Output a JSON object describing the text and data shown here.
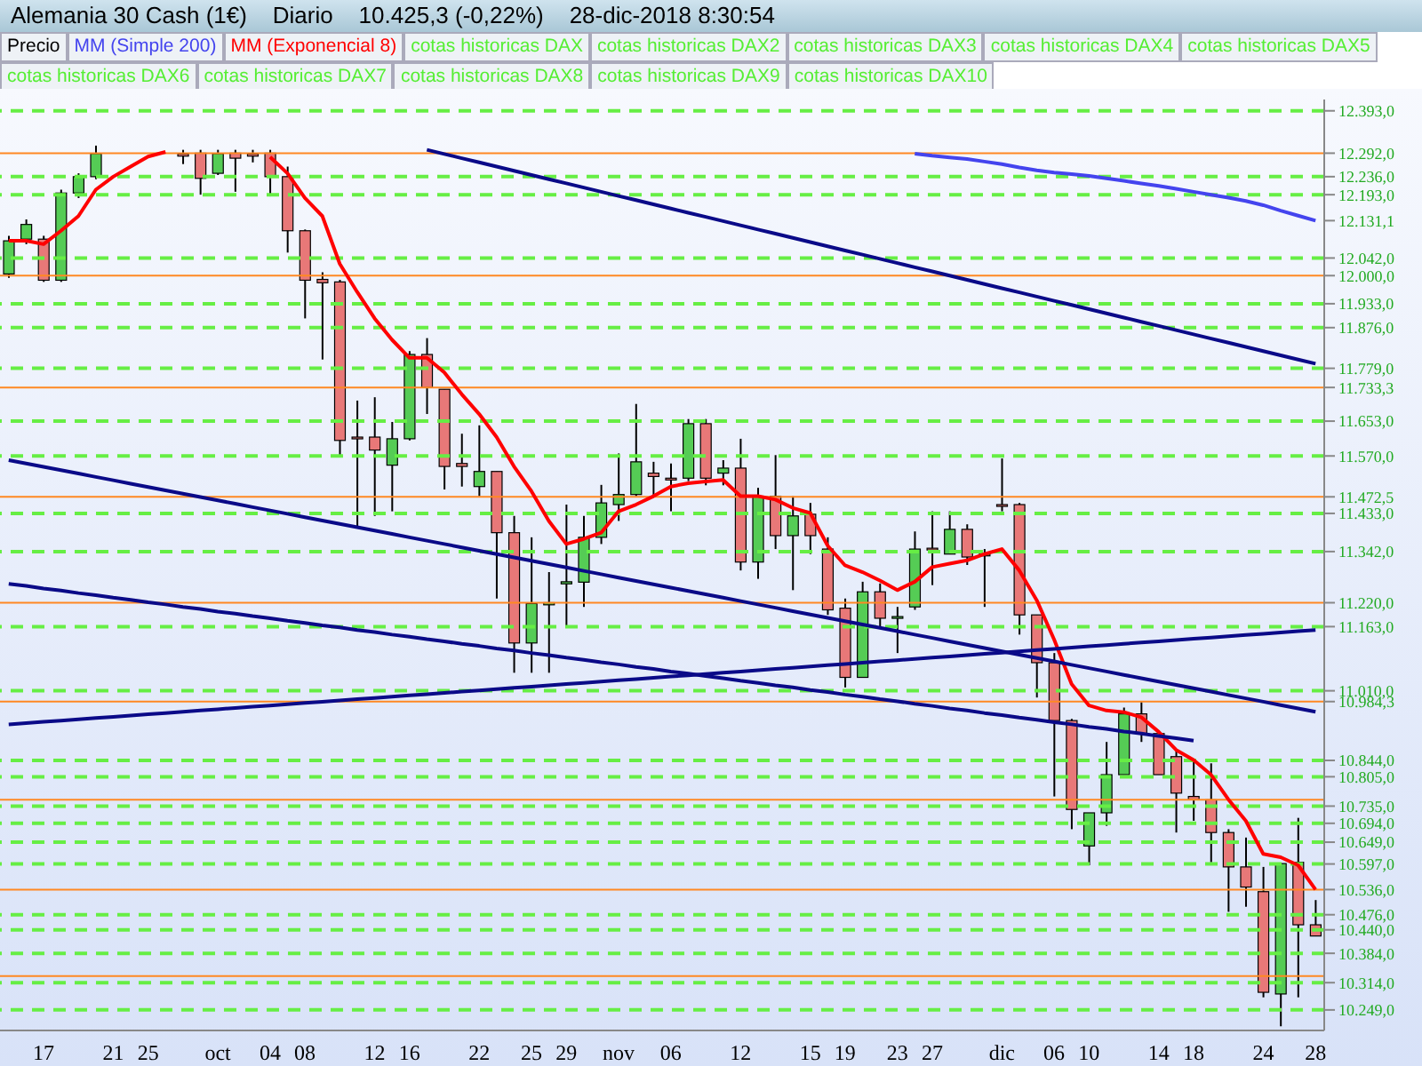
{
  "chart_data": {
    "type": "candlestick",
    "title": "Alemania 30 Cash (1€)    Diario    10.425,3 (-0,22%)    28-dic-2018 8:30:54",
    "legend": "top",
    "categories": [
      null,
      null,
      "17",
      null,
      null,
      null,
      "21",
      null,
      "25",
      null,
      null,
      null,
      "oct",
      null,
      null,
      "04",
      null,
      "08",
      null,
      null,
      null,
      "12",
      null,
      "16",
      null,
      null,
      null,
      "22",
      null,
      null,
      "25",
      null,
      "29",
      null,
      null,
      "nov",
      null,
      null,
      "06",
      null,
      null,
      null,
      "12",
      null,
      null,
      null,
      "15",
      null,
      "19",
      null,
      null,
      "23",
      null,
      "27",
      null,
      null,
      null,
      "dic",
      null,
      null,
      "06",
      null,
      "10",
      null,
      null,
      null,
      "14",
      null,
      "18",
      null,
      null,
      null,
      "24",
      null,
      null,
      "28"
    ],
    "series": [
      {
        "type": "candlestick",
        "name": "Precio",
        "ohlc": [
          [
            12004,
            12095,
            11995,
            12083
          ],
          [
            12087,
            12134,
            12075,
            12122
          ],
          [
            12087,
            12095,
            11985,
            11989
          ],
          [
            11989,
            12205,
            11985,
            12197
          ],
          [
            12197,
            12244,
            12185,
            12236
          ],
          [
            12236,
            12310,
            12230,
            12291
          ],
          null,
          null,
          null,
          null,
          [
            12290,
            12300,
            12266,
            12285
          ],
          [
            12292,
            12300,
            12193,
            12232
          ],
          [
            12244,
            12300,
            12240,
            12291
          ],
          [
            12292,
            12300,
            12200,
            12280
          ],
          [
            12290,
            12300,
            12270,
            12285
          ],
          [
            12292,
            12300,
            12189,
            12236
          ],
          [
            12236,
            12260,
            12055,
            12107
          ],
          [
            12107,
            12110,
            11898,
            11989
          ],
          [
            11991,
            12008,
            11800,
            11983
          ],
          [
            11985,
            11990,
            11572,
            11607
          ],
          [
            11615,
            11702,
            11399,
            11612
          ],
          [
            11615,
            11710,
            11427,
            11584
          ],
          [
            11548,
            11651,
            11438,
            11611
          ],
          [
            11611,
            11820,
            11607,
            11812
          ],
          [
            11812,
            11851,
            11670,
            11733
          ],
          [
            11729,
            11729,
            11490,
            11545
          ],
          [
            11552,
            11623,
            11497,
            11545
          ],
          [
            11497,
            11643,
            11474,
            11533
          ],
          [
            11533,
            11533,
            11230,
            11387
          ],
          [
            11387,
            11427,
            11053,
            11124
          ],
          [
            11124,
            11376,
            11053,
            11218
          ],
          [
            11215,
            11293,
            11053,
            11220
          ],
          [
            11265,
            11454,
            11163,
            11270
          ],
          [
            11269,
            11427,
            11210,
            11376
          ],
          [
            11376,
            11501,
            11360,
            11458
          ],
          [
            11454,
            11576,
            11415,
            11478
          ],
          [
            11478,
            11694,
            11474,
            11556
          ],
          [
            11529,
            11556,
            11474,
            11521
          ],
          [
            11517,
            11552,
            11438,
            11515
          ],
          [
            11517,
            11658,
            11510,
            11647
          ],
          [
            11647,
            11658,
            11500,
            11517
          ],
          [
            11529,
            11560,
            11500,
            11541
          ],
          [
            11541,
            11611,
            11297,
            11317
          ],
          [
            11317,
            11494,
            11277,
            11474
          ],
          [
            11474,
            11572,
            11348,
            11380
          ],
          [
            11380,
            11474,
            11250,
            11427
          ],
          [
            11431,
            11458,
            11336,
            11380
          ],
          [
            11348,
            11376,
            11191,
            11203
          ],
          [
            11207,
            11230,
            11018,
            11042
          ],
          [
            11042,
            11270,
            11042,
            11246
          ],
          [
            11246,
            11266,
            11160,
            11183
          ],
          [
            11183,
            11210,
            11100,
            11187
          ],
          [
            11210,
            11390,
            11203,
            11348
          ],
          [
            11350,
            11438,
            11262,
            11348
          ],
          [
            11336,
            11438,
            11336,
            11395
          ],
          [
            11395,
            11407,
            11310,
            11329
          ],
          [
            11333,
            11348,
            11210,
            11336
          ],
          [
            11454,
            11564,
            11438,
            11452
          ],
          [
            11454,
            11458,
            11144,
            11191
          ],
          [
            11191,
            11191,
            10994,
            11077
          ],
          [
            11077,
            11100,
            10758,
            10939
          ],
          [
            10939,
            10943,
            10680,
            10727
          ],
          [
            10640,
            10719,
            10594,
            10719
          ],
          [
            10719,
            10888,
            10688,
            10810
          ],
          [
            10810,
            10970,
            10810,
            10955
          ],
          [
            10955,
            10983,
            10888,
            10908
          ],
          [
            10908,
            10912,
            10810,
            10810
          ],
          [
            10853,
            10869,
            10672,
            10766
          ],
          [
            10758,
            10845,
            10700,
            10750
          ],
          [
            10750,
            10837,
            10601,
            10672
          ],
          [
            10672,
            10680,
            10483,
            10590
          ],
          [
            10590,
            10660,
            10495,
            10542
          ],
          [
            10531,
            10590,
            10279,
            10291
          ],
          [
            10287,
            10598,
            10210,
            10598
          ],
          [
            10601,
            10707,
            10279,
            10452
          ],
          [
            10452,
            10511,
            10425.3,
            10425.3
          ]
        ],
        "colors": [
          "#55cc55",
          "#55cc55",
          "#e87878",
          "#55cc55",
          "#55cc55",
          "#55cc55",
          null,
          null,
          null,
          null,
          "#e87878",
          "#e87878",
          "#55cc55",
          "#e87878",
          "#e87878",
          "#e87878",
          "#e87878",
          "#e87878",
          "#e87878",
          "#e87878",
          "#e87878",
          "#e87878",
          "#55cc55",
          "#55cc55",
          "#e87878",
          "#e87878",
          "#e87878",
          "#55cc55",
          "#e87878",
          "#e87878",
          "#55cc55",
          "#55cc55",
          "#55cc55",
          "#55cc55",
          "#55cc55",
          "#55cc55",
          "#55cc55",
          "#e87878",
          "#e87878",
          "#55cc55",
          "#e87878",
          "#55cc55",
          "#e87878",
          "#55cc55",
          "#e87878",
          "#55cc55",
          "#e87878",
          "#e87878",
          "#e87878",
          "#55cc55",
          "#e87878",
          "#55cc55",
          "#55cc55",
          "#e87878",
          "#55cc55",
          "#e87878",
          "#55cc55",
          "#e87878",
          "#e87878",
          "#e87878",
          "#e87878",
          "#e87878",
          "#55cc55",
          "#55cc55",
          "#55cc55",
          "#e87878",
          "#e87878",
          "#e87878",
          "#e87878",
          "#e87878",
          "#e87878",
          "#e87878",
          "#e87878",
          "#55cc55",
          "#e87878",
          "#e87878"
        ]
      },
      {
        "type": "line",
        "name": "MM (Simple 200)",
        "color": "#4444ee",
        "values": [
          null,
          null,
          null,
          null,
          null,
          null,
          null,
          null,
          null,
          null,
          null,
          null,
          null,
          null,
          null,
          null,
          null,
          null,
          null,
          null,
          null,
          null,
          null,
          null,
          null,
          null,
          null,
          null,
          null,
          null,
          null,
          null,
          null,
          null,
          null,
          null,
          null,
          null,
          null,
          null,
          null,
          null,
          null,
          null,
          null,
          null,
          null,
          null,
          null,
          null,
          null,
          null,
          12291,
          12286,
          12282,
          12278,
          12272,
          12266,
          12258,
          12251,
          12246,
          12242,
          12238,
          12232,
          12226,
          12220,
          12214,
          12207,
          12200,
          12193,
          12186,
          12178,
          12168,
          12155,
          12143,
          12131.1
        ]
      },
      {
        "type": "line",
        "name": "MM (Exponencial 8)",
        "color": "#ff0000",
        "values": [
          12083,
          12083,
          12075,
          12107,
          12142,
          12205,
          12236,
          12260,
          12284,
          12295,
          null,
          null,
          null,
          null,
          null,
          12283,
          12244,
          12185,
          12142,
          12028,
          11961,
          11898,
          11847,
          11804,
          11804,
          11769,
          11717,
          11670,
          11615,
          11545,
          11486,
          11415,
          11360,
          11372,
          11387,
          11438,
          11454,
          11474,
          11497,
          11505,
          11509,
          11513,
          11474,
          11474,
          11466,
          11446,
          11434,
          11356,
          11309,
          11293,
          11273,
          11250,
          11270,
          11305,
          11313,
          11321,
          11336,
          11348,
          11297,
          11226,
          11132,
          11026,
          10975,
          10963,
          10959,
          10947,
          10912,
          10869,
          10845,
          10810,
          10751,
          10700,
          10621,
          10613,
          10594,
          10536
        ]
      },
      {
        "type": "line",
        "color": "#0a0a88",
        "values": [
          null,
          null,
          null,
          null,
          null,
          null,
          null,
          null,
          null,
          null,
          null,
          null,
          null,
          null,
          null,
          null,
          null,
          null,
          null,
          null,
          null,
          null,
          null,
          null,
          12300,
          12290,
          12280,
          12270,
          12260,
          12250,
          12240,
          12230,
          12220,
          12210,
          12200,
          12190,
          12180,
          12170,
          12160,
          12150,
          12140,
          12130,
          12120,
          12110,
          12100,
          12090,
          12080,
          12070,
          12060,
          12050,
          12040,
          12030,
          12020,
          12010,
          12000,
          11990,
          11980,
          11970,
          11960,
          11950,
          11940,
          11930,
          11920,
          11910,
          11900,
          11890,
          11880,
          11870,
          11860,
          11850,
          11840,
          11830,
          11820,
          11810,
          11800,
          11790
        ]
      },
      {
        "type": "line",
        "color": "#0a0a88",
        "values": [
          11560,
          11552,
          11544,
          11536,
          11528,
          11520,
          11512,
          11504,
          11496,
          11488,
          11480,
          11472,
          11464,
          11456,
          11448,
          11440,
          11432,
          11424,
          11416,
          11408,
          11400,
          11392,
          11384,
          11376,
          11368,
          11360,
          11352,
          11344,
          11336,
          11328,
          11320,
          11312,
          11304,
          11296,
          11288,
          11280,
          11272,
          11264,
          11256,
          11248,
          11240,
          11232,
          11224,
          11216,
          11208,
          11200,
          11192,
          11184,
          11176,
          11168,
          11160,
          11152,
          11144,
          11136,
          11128,
          11120,
          11112,
          11104,
          11096,
          11088,
          11080,
          11072,
          11064,
          11056,
          11048,
          11040,
          11032,
          11024,
          11016,
          11008,
          11000,
          10992,
          10984,
          10976,
          10968,
          10960
        ]
      },
      {
        "type": "line",
        "color": "#0a0a88",
        "values": [
          11265,
          11260,
          11254,
          11249,
          11243,
          11238,
          11232,
          11227,
          11221,
          11216,
          11210,
          11205,
          11199,
          11194,
          11188,
          11183,
          11177,
          11172,
          11166,
          11161,
          11155,
          11150,
          11144,
          11139,
          11133,
          11128,
          11122,
          11117,
          11111,
          11106,
          11100,
          11095,
          11089,
          11084,
          11078,
          11073,
          11067,
          11062,
          11056,
          11051,
          11045,
          11040,
          11034,
          11029,
          11023,
          11018,
          11012,
          11007,
          11001,
          10996,
          10990,
          10985,
          10979,
          10974,
          10968,
          10963,
          10957,
          10952,
          10946,
          10941,
          10935,
          10930,
          10924,
          10919,
          10913,
          10908,
          10902,
          10897,
          10891,
          null,
          null,
          null,
          null,
          null,
          null,
          null
        ]
      },
      {
        "type": "line",
        "color": "#0a0a88",
        "values": [
          10930,
          10933,
          10936,
          10939,
          10942,
          10945,
          10948,
          10951,
          10954,
          10957,
          10960,
          10963,
          10966,
          10969,
          10972,
          10975,
          10978,
          10981,
          10984,
          10987,
          10990,
          10993,
          10996,
          10999,
          11002,
          11005,
          11008,
          11011,
          11014,
          11017,
          11020,
          11023,
          11026,
          11029,
          11032,
          11035,
          11038,
          11041,
          11044,
          11047,
          11050,
          11053,
          11056,
          11059,
          11062,
          11065,
          11068,
          11071,
          11074,
          11077,
          11080,
          11083,
          11086,
          11089,
          11092,
          11095,
          11098,
          11101,
          11104,
          11107,
          11110,
          11113,
          11116,
          11119,
          11122,
          11125,
          11128,
          11131,
          11134,
          11137,
          11140,
          11143,
          11146,
          11149,
          11152,
          11155
        ]
      }
    ],
    "ylim": [
      10200,
      12420
    ],
    "yticks": [
      {
        "value": 12393,
        "label": "12.393,0"
      },
      {
        "value": 12292,
        "label": "12.292,0"
      },
      {
        "value": 12236,
        "label": "12.236,0"
      },
      {
        "value": 12193,
        "label": "12.193,0"
      },
      {
        "value": 12131.1,
        "label": "12.131,1"
      },
      {
        "value": 12042,
        "label": "12.042,0"
      },
      {
        "value": 12000,
        "label": "12.000,0"
      },
      {
        "value": 11933,
        "label": "11.933,0"
      },
      {
        "value": 11876,
        "label": "11.876,0"
      },
      {
        "value": 11779,
        "label": "11.779,0"
      },
      {
        "value": 11733.3,
        "label": "11.733,3"
      },
      {
        "value": 11653,
        "label": "11.653,0"
      },
      {
        "value": 11570,
        "label": "11.570,0"
      },
      {
        "value": 11472.5,
        "label": "11.472,5"
      },
      {
        "value": 11433,
        "label": "11.433,0"
      },
      {
        "value": 11342,
        "label": "11.342,0"
      },
      {
        "value": 11220,
        "label": "11.220,0"
      },
      {
        "value": 11163,
        "label": "11.163,0"
      },
      {
        "value": 11010,
        "label": "11.010,0"
      },
      {
        "value": 10984.3,
        "label": "10.984,3"
      },
      {
        "value": 10844,
        "label": "10.844,0"
      },
      {
        "value": 10805,
        "label": "10.805,0"
      },
      {
        "value": 10735,
        "label": "10.735,0"
      },
      {
        "value": 10694,
        "label": "10.694,0"
      },
      {
        "value": 10649,
        "label": "10.649,0"
      },
      {
        "value": 10597,
        "label": "10.597,0"
      },
      {
        "value": 10536,
        "label": "10.536,0"
      },
      {
        "value": 10476,
        "label": "10.476,0"
      },
      {
        "value": 10440,
        "label": "10.440,0"
      },
      {
        "value": 10384,
        "label": "10.384,0"
      },
      {
        "value": 10314,
        "label": "10.314,0"
      },
      {
        "value": 10249,
        "label": "10.249,0"
      }
    ],
    "ref_lines": [
      {
        "axis": "y",
        "value": 12393,
        "color": "#66ee44",
        "line_style": "dashed"
      },
      {
        "axis": "y",
        "value": 12236,
        "color": "#66ee44",
        "line_style": "dashed"
      },
      {
        "axis": "y",
        "value": 12193,
        "color": "#66ee44",
        "line_style": "dashed"
      },
      {
        "axis": "y",
        "value": 12042,
        "color": "#66ee44",
        "line_style": "dashed"
      },
      {
        "axis": "y",
        "value": 11933,
        "color": "#66ee44",
        "line_style": "dashed"
      },
      {
        "axis": "y",
        "value": 11876,
        "color": "#66ee44",
        "line_style": "dashed"
      },
      {
        "axis": "y",
        "value": 11779,
        "color": "#66ee44",
        "line_style": "dashed"
      },
      {
        "axis": "y",
        "value": 11653,
        "color": "#66ee44",
        "line_style": "dashed"
      },
      {
        "axis": "y",
        "value": 11570,
        "color": "#66ee44",
        "line_style": "dashed"
      },
      {
        "axis": "y",
        "value": 11433,
        "color": "#66ee44",
        "line_style": "dashed"
      },
      {
        "axis": "y",
        "value": 11342,
        "color": "#66ee44",
        "line_style": "dashed"
      },
      {
        "axis": "y",
        "value": 11163,
        "color": "#66ee44",
        "line_style": "dashed"
      },
      {
        "axis": "y",
        "value": 11010,
        "color": "#66ee44",
        "line_style": "dashed"
      },
      {
        "axis": "y",
        "value": 10844,
        "color": "#66ee44",
        "line_style": "dashed"
      },
      {
        "axis": "y",
        "value": 10805,
        "color": "#66ee44",
        "line_style": "dashed"
      },
      {
        "axis": "y",
        "value": 10735,
        "color": "#66ee44",
        "line_style": "dashed"
      },
      {
        "axis": "y",
        "value": 10694,
        "color": "#66ee44",
        "line_style": "dashed"
      },
      {
        "axis": "y",
        "value": 10649,
        "color": "#66ee44",
        "line_style": "dashed"
      },
      {
        "axis": "y",
        "value": 10597,
        "color": "#66ee44",
        "line_style": "dashed"
      },
      {
        "axis": "y",
        "value": 10476,
        "color": "#66ee44",
        "line_style": "dashed"
      },
      {
        "axis": "y",
        "value": 10440,
        "color": "#66ee44",
        "line_style": "dashed"
      },
      {
        "axis": "y",
        "value": 10384,
        "color": "#66ee44",
        "line_style": "dashed"
      },
      {
        "axis": "y",
        "value": 10314,
        "color": "#66ee44",
        "line_style": "dashed"
      },
      {
        "axis": "y",
        "value": 10249,
        "color": "#66ee44",
        "line_style": "dashed"
      },
      {
        "axis": "y",
        "value": 12292,
        "color": "#ff8822",
        "line_style": "solid"
      },
      {
        "axis": "y",
        "value": 12000,
        "color": "#ff8822",
        "line_style": "solid"
      },
      {
        "axis": "y",
        "value": 11733.3,
        "color": "#ff8822",
        "line_style": "solid"
      },
      {
        "axis": "y",
        "value": 11472.5,
        "color": "#ff8822",
        "line_style": "solid"
      },
      {
        "axis": "y",
        "value": 11220,
        "color": "#ff8822",
        "line_style": "solid"
      },
      {
        "axis": "y",
        "value": 10984.3,
        "color": "#ff8822",
        "line_style": "solid"
      },
      {
        "axis": "y",
        "value": 10750,
        "color": "#ff8822",
        "line_style": "solid"
      },
      {
        "axis": "y",
        "value": 10536,
        "color": "#ff8822",
        "line_style": "solid"
      },
      {
        "axis": "y",
        "value": 10330,
        "color": "#ff8822",
        "line_style": "solid"
      }
    ],
    "annotations": [
      "cotas historicas DAX",
      "cotas historicas DAX2",
      "cotas historicas DAX3",
      "cotas historicas DAX4",
      "cotas historicas DAX5",
      "cotas historicas DAX6",
      "cotas historicas DAX7",
      "cotas historicas DAX8",
      "cotas historicas DAX9",
      "cotas historicas DAX10"
    ]
  }
}
